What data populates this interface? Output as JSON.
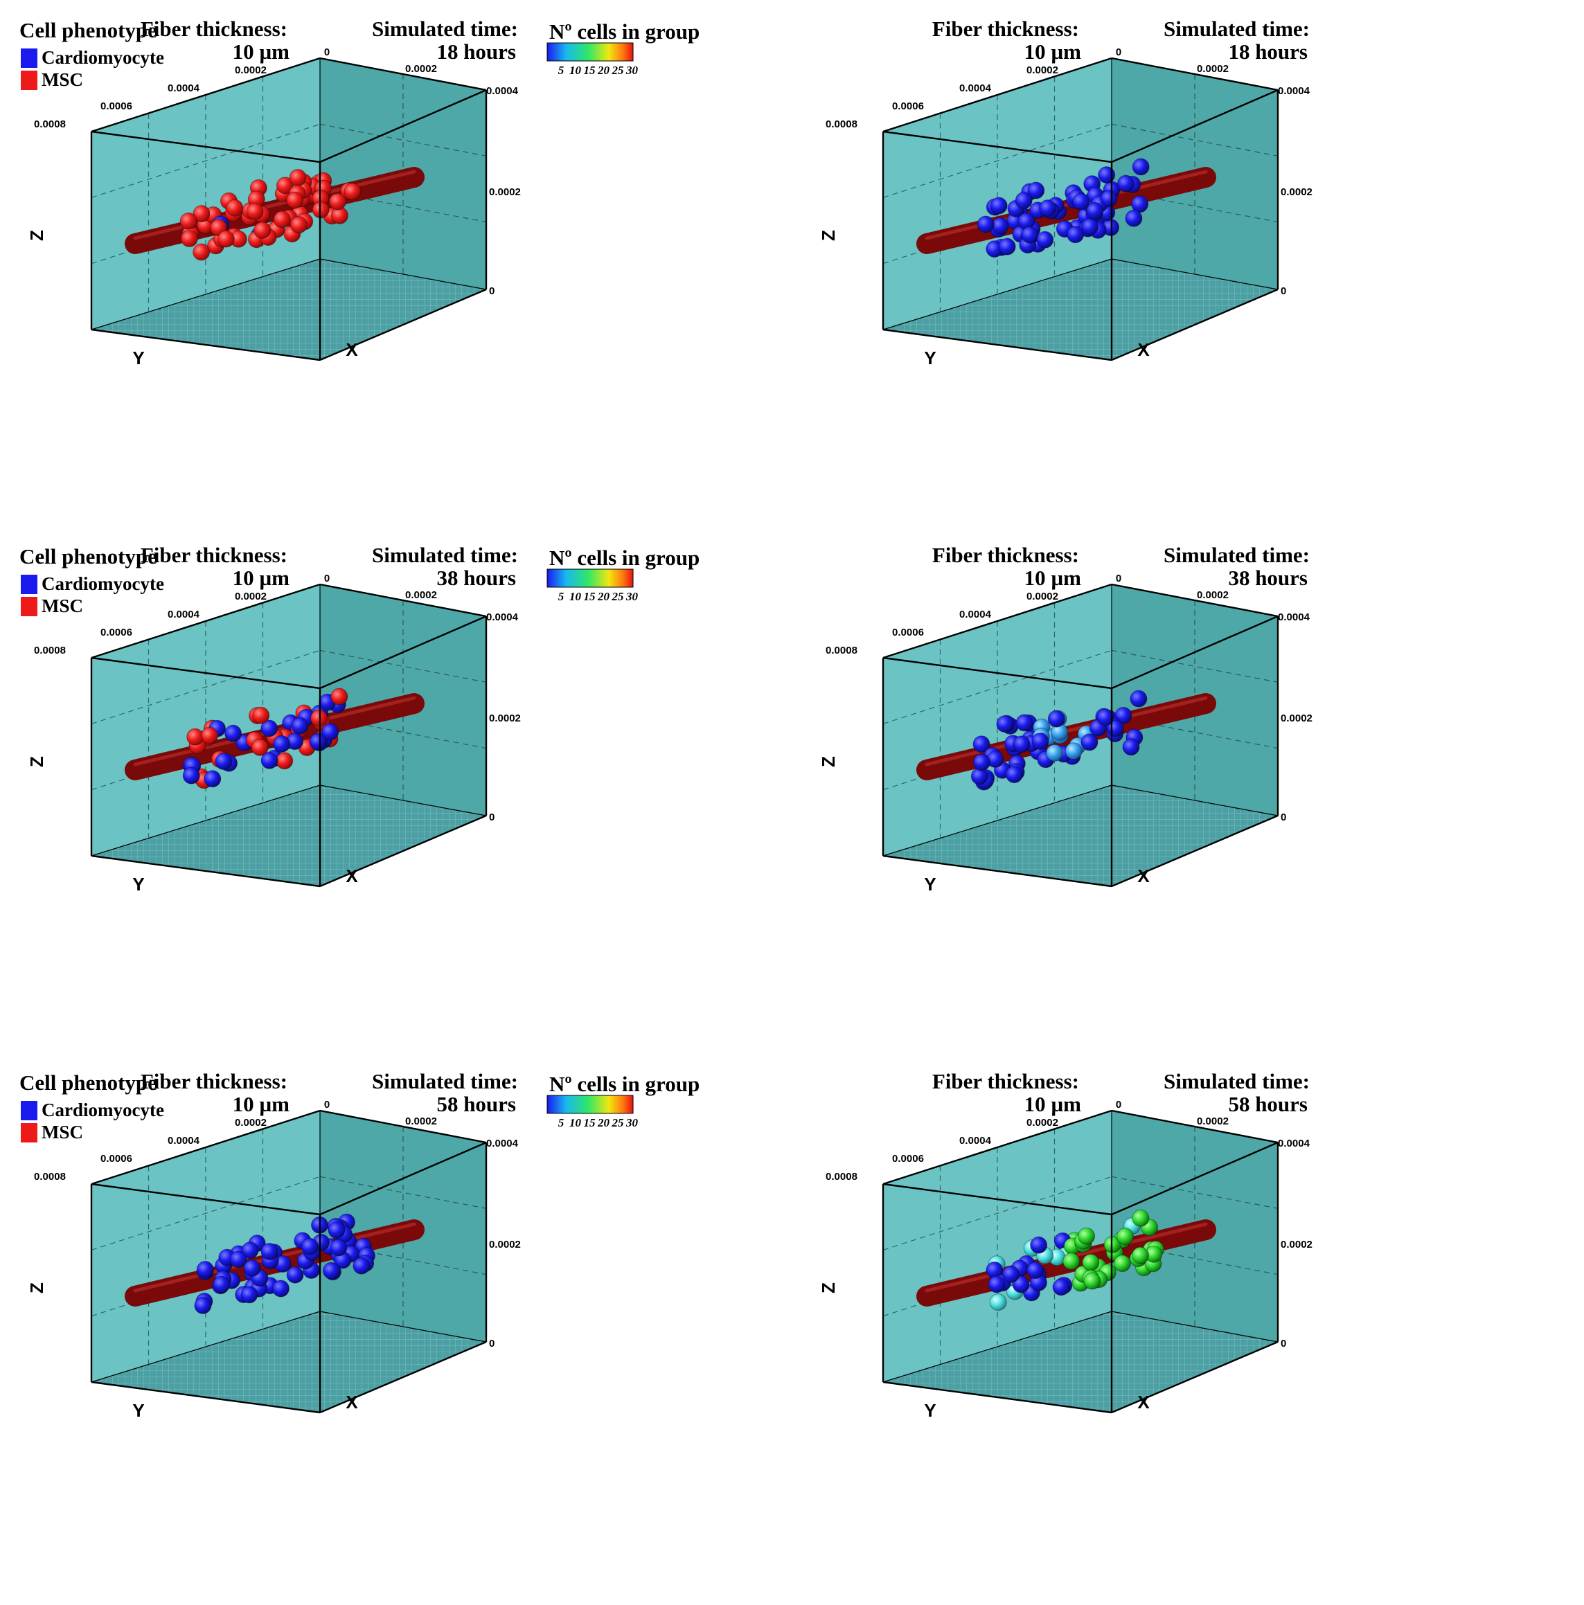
{
  "colors": {
    "box_face": "#6cc3c3",
    "box_back": "#4fa8a8",
    "box_floor": "#4c9fa3",
    "fiber": "#7a0a0a",
    "cardiomyocyte": "#1a1aef",
    "msc": "#ee1a1a"
  },
  "colorbar": {
    "title": "Nº cells in group",
    "ticks": [
      "5",
      "10",
      "15",
      "20",
      "25",
      "30"
    ],
    "stops": [
      "#1a1aef",
      "#19b8f0",
      "#2ee866",
      "#f2e60f",
      "#ff7a10",
      "#e81010"
    ]
  },
  "phenotype_legend": {
    "title": "Cell phenotype",
    "items": [
      {
        "label": "Cardiomyocyte",
        "color": "#1a1aef"
      },
      {
        "label": "MSC",
        "color": "#ee1a1a"
      }
    ]
  },
  "fiber": {
    "heading": "Fiber thickness:",
    "value": "10 µm"
  },
  "sim": {
    "heading": "Simulated time:"
  },
  "axes": {
    "x_label": "X",
    "y_label": "Y",
    "z_label": "Z",
    "x_ticks": [
      "0",
      "0.0002",
      "0.0004"
    ],
    "y_ticks": [
      "0",
      "0.0002",
      "0.0004",
      "0.0006",
      "0.0008"
    ],
    "z_ticks": [
      "0",
      "0.0002",
      "0.0004"
    ]
  },
  "panels": [
    {
      "kind": "phenotype",
      "time": "18 hours",
      "cells": {
        "msc": 56,
        "cardiomyocyte": 2
      }
    },
    {
      "kind": "group",
      "time": "18 hours",
      "cells": {
        "group_levels": [
          "blue"
        ]
      }
    },
    {
      "kind": "phenotype",
      "time": "38 hours",
      "cells": {
        "msc": 20,
        "cardiomyocyte": 30
      }
    },
    {
      "kind": "group",
      "time": "38 hours",
      "cells": {
        "group_levels": [
          "blue",
          "light-blue"
        ]
      }
    },
    {
      "kind": "phenotype",
      "time": "58 hours",
      "cells": {
        "msc": 0,
        "cardiomyocyte": 52
      }
    },
    {
      "kind": "group",
      "time": "58 hours",
      "cells": {
        "group_levels": [
          "blue",
          "cyan",
          "green"
        ]
      }
    }
  ]
}
